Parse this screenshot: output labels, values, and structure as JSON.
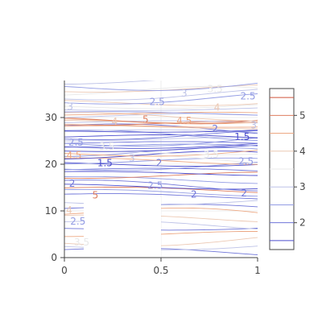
{
  "chart_data": {
    "type": "contour",
    "title": "",
    "xlabel": "",
    "ylabel": "",
    "xlim": [
      0,
      1
    ],
    "ylim": [
      0,
      38
    ],
    "x_ticks": [
      "0",
      "0.5",
      "1"
    ],
    "y_ticks": [
      "0",
      "10",
      "20",
      "30"
    ],
    "x_tick_values": [
      0,
      0.5,
      1
    ],
    "y_tick_values": [
      0,
      10,
      20,
      30
    ],
    "colorbar": {
      "range": [
        1.25,
        5.75
      ],
      "ticks": [
        "2",
        "3",
        "4",
        "5"
      ],
      "tick_values": [
        2,
        3,
        4,
        5
      ],
      "colorscale": [
        [
          0,
          "#3a3ac8"
        ],
        [
          0.3,
          "#9aa4e6"
        ],
        [
          0.5,
          "#e8e8e8"
        ],
        [
          0.7,
          "#f0b08a"
        ],
        [
          1,
          "#c8402a"
        ]
      ]
    },
    "contour_labels": [
      {
        "text": "3.5",
        "x": 0.78,
        "y": 36.2,
        "level": 3.5
      },
      {
        "text": "3",
        "x": 0.62,
        "y": 35.2,
        "level": 3
      },
      {
        "text": "2.5",
        "x": 0.95,
        "y": 34.6,
        "level": 2.5
      },
      {
        "text": "2.5",
        "x": 0.48,
        "y": 33.4,
        "level": 2.5
      },
      {
        "text": "3",
        "x": 0.03,
        "y": 32.4,
        "level": 3
      },
      {
        "text": "4",
        "x": 0.79,
        "y": 32.2,
        "level": 4
      },
      {
        "text": "4",
        "x": 0.26,
        "y": 29.2,
        "level": 4
      },
      {
        "text": "5",
        "x": 0.42,
        "y": 29.6,
        "level": 5
      },
      {
        "text": "4.5",
        "x": 0.62,
        "y": 29.4,
        "level": 4.5
      },
      {
        "text": "3",
        "x": 0.98,
        "y": 28.4,
        "level": 3
      },
      {
        "text": "2",
        "x": 0.78,
        "y": 27.6,
        "level": 2
      },
      {
        "text": "1.5",
        "x": 0.92,
        "y": 25.9,
        "level": 1.5
      },
      {
        "text": "2.5",
        "x": 0.06,
        "y": 24.7,
        "level": 2.5
      },
      {
        "text": "3.5",
        "x": 0.22,
        "y": 23.8,
        "level": 3.5
      },
      {
        "text": "4.5",
        "x": 0.05,
        "y": 21.9,
        "level": 4.5
      },
      {
        "text": "3.5",
        "x": 0.76,
        "y": 22.1,
        "level": 3.5
      },
      {
        "text": "3",
        "x": 0.35,
        "y": 21.3,
        "level": 3
      },
      {
        "text": "1.5",
        "x": 0.21,
        "y": 20.3,
        "level": 1.5
      },
      {
        "text": "2",
        "x": 0.49,
        "y": 20.3,
        "level": 2
      },
      {
        "text": "2.5",
        "x": 0.94,
        "y": 20.6,
        "level": 2.5
      },
      {
        "text": "2",
        "x": 0.04,
        "y": 15.9,
        "level": 2
      },
      {
        "text": "2.5",
        "x": 0.47,
        "y": 15.5,
        "level": 2.5
      },
      {
        "text": "5",
        "x": 0.16,
        "y": 13.4,
        "level": 5
      },
      {
        "text": "2",
        "x": 0.67,
        "y": 13.6,
        "level": 2
      },
      {
        "text": "2",
        "x": 0.93,
        "y": 13.8,
        "level": 2
      },
      {
        "text": "4",
        "x": 0.025,
        "y": 10.2,
        "level": 4
      },
      {
        "text": "2.5",
        "x": 0.07,
        "y": 7.8,
        "level": 2.5
      },
      {
        "text": "3.5",
        "x": 0.09,
        "y": 3.3,
        "level": 3.5
      }
    ],
    "grid": true
  }
}
